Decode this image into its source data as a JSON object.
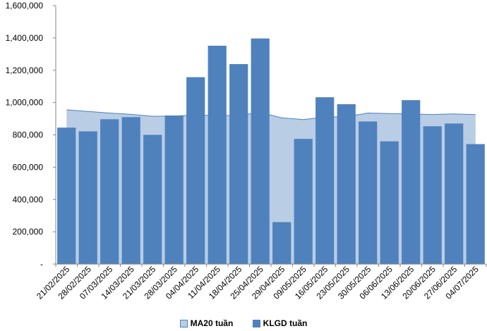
{
  "chart_data": {
    "type": "bar",
    "categories": [
      "21/02/2025",
      "28/02/2025",
      "07/03/2025",
      "14/03/2025",
      "21/03/2025",
      "28/03/2025",
      "04/04/2025",
      "11/04/2025",
      "18/04/2025",
      "25/04/2025",
      "29/04/2025",
      "09/05/2025",
      "16/05/2025",
      "23/05/2025",
      "30/05/2025",
      "06/06/2025",
      "13/06/2025",
      "20/06/2025",
      "27/06/2025",
      "04/07/2025"
    ],
    "series": [
      {
        "name": "MA20 tuần",
        "type": "area",
        "values": [
          955000,
          945000,
          935000,
          927000,
          915000,
          917000,
          922000,
          920000,
          920000,
          940000,
          905000,
          895000,
          910000,
          913000,
          935000,
          932000,
          930000,
          926000,
          930000,
          925000
        ]
      },
      {
        "name": "KLGD tuần",
        "type": "bar",
        "values": [
          845000,
          822000,
          897000,
          910000,
          800000,
          920000,
          1157000,
          1352000,
          1238000,
          1397000,
          260000,
          775000,
          1033000,
          990000,
          883000,
          760000,
          1015000,
          853000,
          870000,
          743000
        ]
      }
    ],
    "y_ticks": [
      "-",
      "200,000",
      "400,000",
      "600,000",
      "800,000",
      "1,000,000",
      "1,200,000",
      "1,400,000",
      "1,600,000"
    ],
    "ylim": [
      0,
      1600000
    ],
    "grid": false,
    "legend": "bottom",
    "colors": {
      "bar": "#4F81BD",
      "area_fill": "#B9CDE5",
      "area_line": "#4F81BD",
      "axis": "#868686"
    }
  }
}
